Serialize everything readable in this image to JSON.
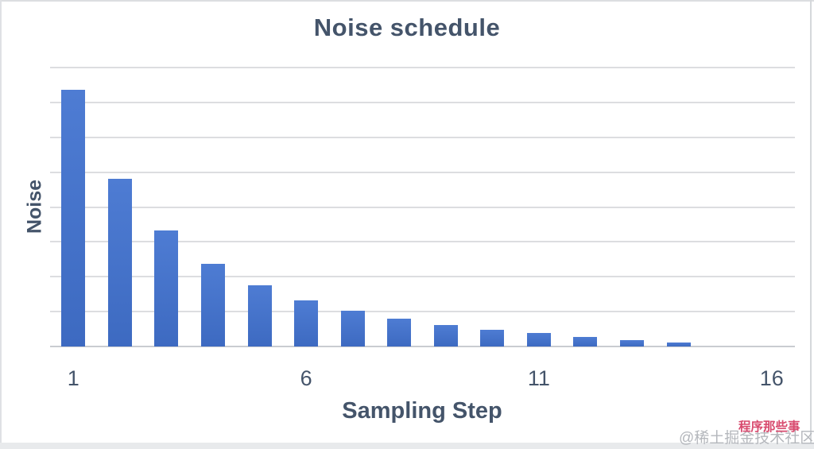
{
  "chart": {
    "title": "Noise schedule",
    "xlabel": "Sampling Step",
    "ylabel": "Noise"
  },
  "chart_data": {
    "type": "bar",
    "title": "Noise schedule",
    "xlabel": "Sampling Step",
    "ylabel": "Noise",
    "categories": [
      1,
      2,
      3,
      4,
      5,
      6,
      7,
      8,
      9,
      10,
      11,
      12,
      13,
      14,
      15,
      16
    ],
    "values": [
      7.36,
      4.81,
      3.33,
      2.37,
      1.75,
      1.33,
      1.03,
      0.8,
      0.62,
      0.48,
      0.39,
      0.27,
      0.18,
      0.11,
      0,
      0
    ],
    "ylim": [
      0,
      8
    ],
    "gridline_step": 1,
    "grid": true,
    "legend": false,
    "x_ticks": [
      {
        "label": "1",
        "slot": 1
      },
      {
        "label": "6",
        "slot": 6
      },
      {
        "label": "11",
        "slot": 11
      },
      {
        "label": "16",
        "slot": 16
      }
    ],
    "colors": {
      "bar_top": "#4e7cd3",
      "bar_bottom": "#3d6ac1",
      "gridline": "#dcdde0",
      "baseline": "#c9ccd1",
      "title_text": "#44546a",
      "tick_text": "#44546a"
    }
  },
  "watermark": {
    "main_text": "@稀土掘金技术社区",
    "main_color": "#b4b7bc",
    "overlay_text": "程序那些事",
    "overlay_color": "#d84a6e"
  }
}
